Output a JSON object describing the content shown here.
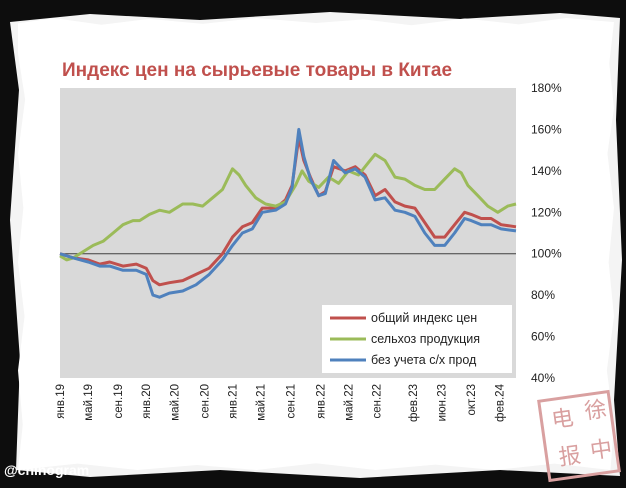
{
  "watermark": "@chinogram",
  "stamp_chars": [
    "电",
    "报",
    "中",
    "徐"
  ],
  "colors": {
    "general": "#c0504d",
    "agri": "#9bbb59",
    "nonagri": "#4f81bd",
    "plot_bg": "#d9d9d9",
    "title": "#c0504d"
  },
  "chart_data": {
    "type": "line",
    "title": "Индекс цен на сырьевые товары в Китае",
    "ylim": [
      40,
      180
    ],
    "y_ticks": [
      "180%",
      "160%",
      "140%",
      "120%",
      "100%",
      "80%",
      "60%",
      "40%"
    ],
    "y_tick_values": [
      180,
      160,
      140,
      120,
      100,
      80,
      60,
      40
    ],
    "reference_line": 100,
    "grid": false,
    "legend_position": "bottom-right",
    "x_tick_labels": [
      "янв.19",
      "май.19",
      "сен.19",
      "янв.20",
      "май.20",
      "сен.20",
      "янв.21",
      "май.21",
      "сен.21",
      "янв.22",
      "май.22",
      "сен.22",
      "фев.23",
      "июн.23",
      "окт.23",
      "фев.24"
    ],
    "x_tick_weeks": [
      0,
      17,
      35,
      52,
      69,
      87,
      104,
      121,
      139,
      157,
      174,
      191,
      213,
      230,
      248,
      265
    ],
    "x_range_weeks": [
      0,
      275
    ],
    "series": [
      {
        "name": "общий индекс цен",
        "color": "#c0504d",
        "points": [
          [
            0,
            100
          ],
          [
            8,
            98
          ],
          [
            17,
            97
          ],
          [
            24,
            95
          ],
          [
            30,
            96
          ],
          [
            38,
            94
          ],
          [
            46,
            95
          ],
          [
            52,
            93
          ],
          [
            56,
            87
          ],
          [
            60,
            85
          ],
          [
            66,
            86
          ],
          [
            74,
            87
          ],
          [
            82,
            90
          ],
          [
            90,
            93
          ],
          [
            98,
            100
          ],
          [
            104,
            108
          ],
          [
            110,
            113
          ],
          [
            116,
            115
          ],
          [
            122,
            122
          ],
          [
            130,
            122
          ],
          [
            136,
            126
          ],
          [
            140,
            133
          ],
          [
            144,
            156
          ],
          [
            147,
            145
          ],
          [
            151,
            137
          ],
          [
            156,
            128
          ],
          [
            160,
            130
          ],
          [
            165,
            142
          ],
          [
            172,
            140
          ],
          [
            178,
            142
          ],
          [
            184,
            138
          ],
          [
            190,
            128
          ],
          [
            196,
            131
          ],
          [
            202,
            125
          ],
          [
            208,
            123
          ],
          [
            214,
            122
          ],
          [
            220,
            115
          ],
          [
            226,
            108
          ],
          [
            232,
            108
          ],
          [
            238,
            114
          ],
          [
            244,
            120
          ],
          [
            248,
            119
          ],
          [
            254,
            117
          ],
          [
            260,
            117
          ],
          [
            266,
            114
          ],
          [
            275,
            113
          ]
        ]
      },
      {
        "name": "сельхоз продукция",
        "color": "#9bbb59",
        "points": [
          [
            0,
            99
          ],
          [
            4,
            97
          ],
          [
            8,
            98
          ],
          [
            14,
            101
          ],
          [
            20,
            104
          ],
          [
            26,
            106
          ],
          [
            32,
            110
          ],
          [
            38,
            114
          ],
          [
            44,
            116
          ],
          [
            48,
            116
          ],
          [
            54,
            119
          ],
          [
            60,
            121
          ],
          [
            66,
            120
          ],
          [
            74,
            124
          ],
          [
            80,
            124
          ],
          [
            86,
            123
          ],
          [
            92,
            127
          ],
          [
            98,
            131
          ],
          [
            104,
            141
          ],
          [
            108,
            138
          ],
          [
            112,
            133
          ],
          [
            118,
            127
          ],
          [
            124,
            124
          ],
          [
            130,
            123
          ],
          [
            136,
            125
          ],
          [
            142,
            133
          ],
          [
            146,
            140
          ],
          [
            150,
            135
          ],
          [
            156,
            132
          ],
          [
            162,
            137
          ],
          [
            168,
            134
          ],
          [
            174,
            140
          ],
          [
            180,
            138
          ],
          [
            186,
            144
          ],
          [
            190,
            148
          ],
          [
            196,
            145
          ],
          [
            202,
            137
          ],
          [
            208,
            136
          ],
          [
            214,
            133
          ],
          [
            220,
            131
          ],
          [
            226,
            131
          ],
          [
            232,
            136
          ],
          [
            238,
            141
          ],
          [
            242,
            139
          ],
          [
            246,
            133
          ],
          [
            252,
            128
          ],
          [
            258,
            123
          ],
          [
            264,
            120
          ],
          [
            270,
            123
          ],
          [
            275,
            124
          ]
        ]
      },
      {
        "name": "без учета с/х прод",
        "color": "#4f81bd",
        "points": [
          [
            0,
            100
          ],
          [
            8,
            98
          ],
          [
            17,
            96
          ],
          [
            24,
            94
          ],
          [
            30,
            94
          ],
          [
            38,
            92
          ],
          [
            46,
            92
          ],
          [
            52,
            90
          ],
          [
            56,
            80
          ],
          [
            60,
            79
          ],
          [
            66,
            81
          ],
          [
            74,
            82
          ],
          [
            82,
            85
          ],
          [
            90,
            90
          ],
          [
            98,
            97
          ],
          [
            104,
            104
          ],
          [
            110,
            110
          ],
          [
            116,
            112
          ],
          [
            122,
            120
          ],
          [
            130,
            121
          ],
          [
            136,
            124
          ],
          [
            140,
            132
          ],
          [
            144,
            160
          ],
          [
            147,
            147
          ],
          [
            151,
            136
          ],
          [
            156,
            128
          ],
          [
            160,
            129
          ],
          [
            165,
            145
          ],
          [
            172,
            139
          ],
          [
            178,
            141
          ],
          [
            184,
            137
          ],
          [
            190,
            126
          ],
          [
            196,
            127
          ],
          [
            202,
            121
          ],
          [
            208,
            120
          ],
          [
            214,
            118
          ],
          [
            220,
            110
          ],
          [
            226,
            104
          ],
          [
            232,
            104
          ],
          [
            238,
            110
          ],
          [
            244,
            117
          ],
          [
            248,
            116
          ],
          [
            254,
            114
          ],
          [
            260,
            114
          ],
          [
            266,
            112
          ],
          [
            275,
            111
          ]
        ]
      }
    ]
  }
}
